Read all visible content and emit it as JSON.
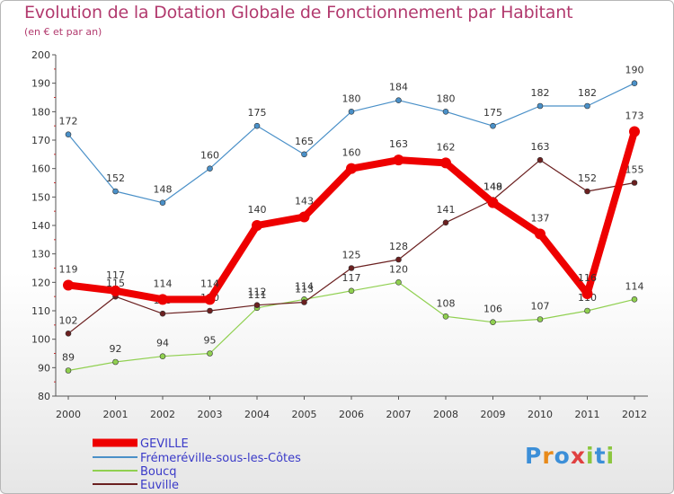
{
  "chart_data": {
    "type": "line",
    "title": "Evolution de la Dotation Globale de Fonctionnement par Habitant",
    "subtitle": "(en € et par an)",
    "x": [
      "2000",
      "2001",
      "2002",
      "2003",
      "2004",
      "2005",
      "2006",
      "2007",
      "2008",
      "2009",
      "2010",
      "2011",
      "2012"
    ],
    "ylim": [
      80,
      200
    ],
    "yticks": [
      80,
      90,
      100,
      110,
      120,
      130,
      140,
      150,
      160,
      170,
      180,
      190,
      200
    ],
    "grid": false,
    "legend_position": "bottom-left",
    "series": [
      {
        "name": "GEVILLE",
        "color": "#ee0000",
        "values": [
          119,
          117,
          114,
          114,
          140,
          143,
          160,
          163,
          162,
          148,
          137,
          116,
          173
        ]
      },
      {
        "name": "Frémeréville-sous-les-Côtes",
        "color": "#4a90c8",
        "values": [
          172,
          152,
          148,
          160,
          175,
          165,
          180,
          184,
          180,
          175,
          182,
          182,
          190
        ]
      },
      {
        "name": "Boucq",
        "color": "#90d050",
        "values": [
          89,
          92,
          94,
          95,
          111,
          114,
          117,
          120,
          108,
          106,
          107,
          110,
          114
        ]
      },
      {
        "name": "Euville",
        "color": "#6b2020",
        "values": [
          102,
          115,
          109,
          110,
          112,
          113,
          125,
          128,
          141,
          149,
          163,
          152,
          155
        ]
      }
    ]
  },
  "logo": {
    "letters": [
      "P",
      "r",
      "o",
      "x",
      "i",
      "t",
      "i"
    ],
    "colors": [
      "#3c8fd8",
      "#e88a1a",
      "#3c8fd8",
      "#e04040",
      "#8cc63f",
      "#3c8fd8",
      "#8cc63f"
    ]
  }
}
